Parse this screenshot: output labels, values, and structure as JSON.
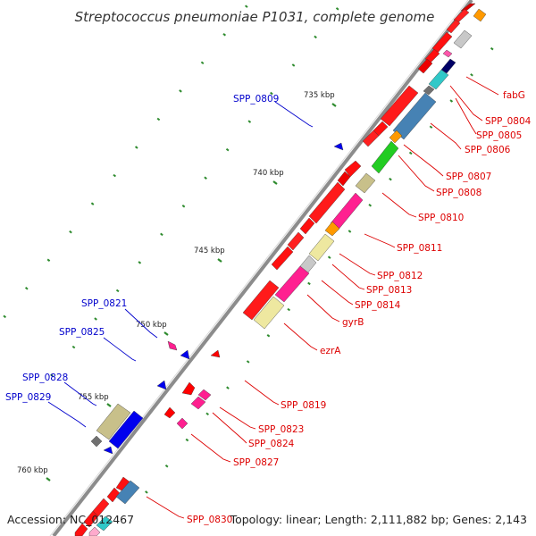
{
  "title": "Streptococcus pneumoniae P1031, complete genome",
  "accession": "Accession: NC_012467",
  "stats": "Topology: linear; Length: 2,111,882 bp; Genes: 2,143",
  "colors": {
    "backbone": "#8c8c8c",
    "tick": "#2e8b2e",
    "reverse_label": "#0000cc",
    "forward_label": "#dd0000"
  },
  "scale_marks": [
    {
      "kbp": 735,
      "label": "735 kbp"
    },
    {
      "kbp": 740,
      "label": "740 kbp"
    },
    {
      "kbp": 745,
      "label": "745 kbp"
    },
    {
      "kbp": 750,
      "label": "750 kbp"
    },
    {
      "kbp": 755,
      "label": "755 kbp"
    },
    {
      "kbp": 760,
      "label": "760 kbp"
    }
  ],
  "labels": {
    "fabG": "fabG",
    "SPP_0804": "SPP_0804",
    "SPP_0805": "SPP_0805",
    "SPP_0806": "SPP_0806",
    "SPP_0807": "SPP_0807",
    "SPP_0808": "SPP_0808",
    "SPP_0810": "SPP_0810",
    "SPP_0811": "SPP_0811",
    "SPP_0812": "SPP_0812",
    "SPP_0813": "SPP_0813",
    "SPP_0814": "SPP_0814",
    "gyrB": "gyrB",
    "ezrA": "ezrA",
    "SPP_0819": "SPP_0819",
    "SPP_0823": "SPP_0823",
    "SPP_0824": "SPP_0824",
    "SPP_0827": "SPP_0827",
    "SPP_0830": "SPP_0830",
    "SPP_0809": "SPP_0809",
    "SPP_0821": "SPP_0821",
    "SPP_0825": "SPP_0825",
    "SPP_0828": "SPP_0828",
    "SPP_0829": "SPP_0829"
  }
}
